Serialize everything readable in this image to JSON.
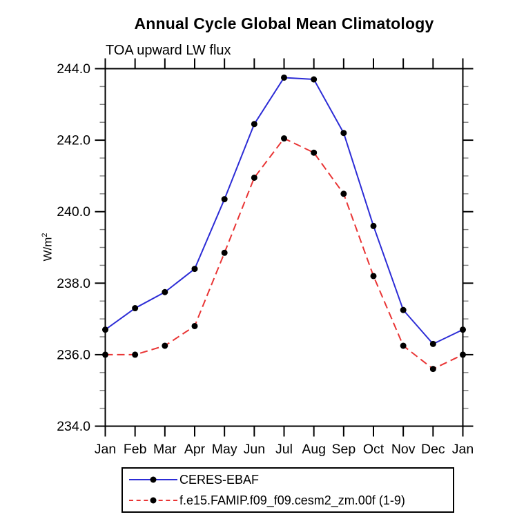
{
  "title": "Annual Cycle Global Mean Climatology",
  "subtitle": "TOA upward LW flux",
  "y_axis": {
    "label_full": "W/m²",
    "label_base": "W/m",
    "label_sup": "2"
  },
  "chart_data": {
    "type": "line",
    "categories": [
      "Jan",
      "Feb",
      "Mar",
      "Apr",
      "May",
      "Jun",
      "Jul",
      "Aug",
      "Sep",
      "Oct",
      "Nov",
      "Dec",
      "Jan"
    ],
    "series": [
      {
        "name": "CERES-EBAF",
        "color": "#2c2cd6",
        "line_style": "solid",
        "marker": "filled-circle",
        "marker_color": "#000000",
        "values": [
          236.7,
          237.3,
          237.75,
          238.4,
          240.35,
          242.45,
          243.75,
          243.7,
          242.2,
          239.6,
          237.25,
          236.3,
          236.7
        ]
      },
      {
        "name": "f.e15.FAMIP.f09_f09.cesm2_zm.00f (1-9)",
        "color": "#e93434",
        "line_style": "dashed",
        "marker": "filled-circle",
        "marker_color": "#000000",
        "values": [
          236.0,
          236.0,
          236.25,
          236.8,
          238.85,
          240.95,
          242.05,
          241.65,
          240.5,
          238.2,
          236.25,
          235.6,
          236.0
        ]
      }
    ],
    "xlabel": "",
    "ylabel": "W/m²",
    "ylim": [
      234.0,
      244.0
    ],
    "ytick_values": [
      234,
      236,
      238,
      240,
      242,
      244
    ],
    "ytick_labels": [
      "234.0",
      "236.0",
      "238.0",
      "240.0",
      "242.0",
      "244.0"
    ],
    "yminor_step": 0.5,
    "grid": false,
    "tick_direction": "out",
    "legend_position": "bottom"
  }
}
